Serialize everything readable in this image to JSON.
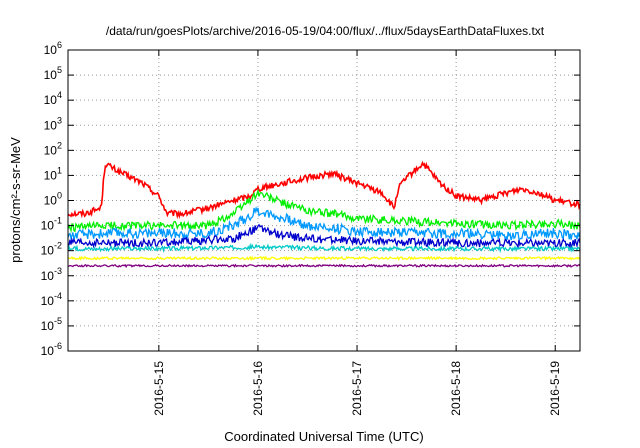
{
  "chart_data": {
    "type": "line",
    "title": "/data/run/goesPlots/archive/2016-05-19/04:00/flux/../flux/5daysEarthDataFluxes.txt",
    "xlabel": "Coordinated Universal Time (UTC)",
    "ylabel": "protons/cm²-s-sr-MeV",
    "x_axis_type": "date",
    "xlim": [
      "2016-05-14T02:00",
      "2016-05-19T06:00"
    ],
    "x_ticks": [
      "2016-5-15",
      "2016-5-16",
      "2016-5-17",
      "2016-5-18",
      "2016-5-19"
    ],
    "y_scale": "log",
    "ylim": [
      1e-06,
      1000000.0
    ],
    "y_ticks": [
      {
        "base": "10",
        "exp": "-6"
      },
      {
        "base": "10",
        "exp": "-5"
      },
      {
        "base": "10",
        "exp": "-4"
      },
      {
        "base": "10",
        "exp": "-3"
      },
      {
        "base": "10",
        "exp": "-2"
      },
      {
        "base": "10",
        "exp": "-1"
      },
      {
        "base": "10",
        "exp": "0"
      },
      {
        "base": "10",
        "exp": "1"
      },
      {
        "base": "10",
        "exp": "2"
      },
      {
        "base": "10",
        "exp": "3"
      },
      {
        "base": "10",
        "exp": "4"
      },
      {
        "base": "10",
        "exp": "5"
      },
      {
        "base": "10",
        "exp": "6"
      }
    ],
    "grid": true,
    "legend": "none",
    "series": [
      {
        "color": "#ff0000",
        "x": [
          "2016-05-14T02:00",
          "2016-05-14T06:00",
          "2016-05-14T10:00",
          "2016-05-14T11:00",
          "2016-05-14T14:00",
          "2016-05-14T20:00",
          "2016-05-15T00:00",
          "2016-05-15T02:00",
          "2016-05-15T06:00",
          "2016-05-15T12:00",
          "2016-05-15T18:00",
          "2016-05-15T22:00",
          "2016-05-16T00:00",
          "2016-05-16T06:00",
          "2016-05-16T12:00",
          "2016-05-16T18:00",
          "2016-05-17T00:00",
          "2016-05-17T06:00",
          "2016-05-17T09:00",
          "2016-05-17T10:00",
          "2016-05-17T12:00",
          "2016-05-17T16:00",
          "2016-05-17T20:00",
          "2016-05-18T00:00",
          "2016-05-18T06:00",
          "2016-05-18T12:00",
          "2016-05-18T16:00",
          "2016-05-18T20:00",
          "2016-05-19T00:00",
          "2016-05-19T06:00"
        ],
        "y": [
          0.3,
          0.3,
          0.5,
          30,
          15,
          5,
          1.5,
          0.3,
          0.3,
          0.5,
          1.0,
          1.5,
          3,
          5,
          8,
          12,
          5,
          2,
          0.5,
          3,
          8,
          30,
          5,
          1.5,
          1.0,
          2,
          3,
          2,
          1.0,
          0.7
        ]
      },
      {
        "color": "#00ee00",
        "x": [
          "2016-05-14T02:00",
          "2016-05-14T12:00",
          "2016-05-15T00:00",
          "2016-05-15T12:00",
          "2016-05-15T18:00",
          "2016-05-16T00:00",
          "2016-05-16T06:00",
          "2016-05-16T12:00",
          "2016-05-16T18:00",
          "2016-05-17T00:00",
          "2016-05-17T12:00",
          "2016-05-18T00:00",
          "2016-05-18T12:00",
          "2016-05-19T00:00",
          "2016-05-19T06:00"
        ],
        "y": [
          0.08,
          0.1,
          0.1,
          0.1,
          0.3,
          2,
          0.8,
          0.4,
          0.3,
          0.2,
          0.15,
          0.12,
          0.1,
          0.12,
          0.1
        ]
      },
      {
        "color": "#0099ff",
        "x": [
          "2016-05-14T02:00",
          "2016-05-14T12:00",
          "2016-05-15T00:00",
          "2016-05-15T12:00",
          "2016-05-15T18:00",
          "2016-05-16T00:00",
          "2016-05-16T06:00",
          "2016-05-16T12:00",
          "2016-05-16T18:00",
          "2016-05-17T00:00",
          "2016-05-17T12:00",
          "2016-05-18T00:00",
          "2016-05-18T12:00",
          "2016-05-19T00:00",
          "2016-05-19T06:00"
        ],
        "y": [
          0.04,
          0.05,
          0.05,
          0.05,
          0.1,
          0.4,
          0.2,
          0.1,
          0.08,
          0.06,
          0.05,
          0.05,
          0.04,
          0.05,
          0.04
        ]
      },
      {
        "color": "#0000cc",
        "x": [
          "2016-05-14T02:00",
          "2016-05-15T00:00",
          "2016-05-15T18:00",
          "2016-05-16T00:00",
          "2016-05-16T06:00",
          "2016-05-16T12:00",
          "2016-05-17T00:00",
          "2016-05-18T00:00",
          "2016-05-19T00:00",
          "2016-05-19T06:00"
        ],
        "y": [
          0.02,
          0.02,
          0.03,
          0.08,
          0.04,
          0.03,
          0.025,
          0.02,
          0.02,
          0.02
        ]
      },
      {
        "color": "#00c8c8",
        "x": [
          "2016-05-14T02:00",
          "2016-05-15T00:00",
          "2016-05-16T00:00",
          "2016-05-17T00:00",
          "2016-05-18T00:00",
          "2016-05-19T00:00",
          "2016-05-19T06:00"
        ],
        "y": [
          0.012,
          0.012,
          0.014,
          0.012,
          0.012,
          0.012,
          0.012
        ]
      },
      {
        "color": "#ffff00",
        "x": [
          "2016-05-14T02:00",
          "2016-05-15T00:00",
          "2016-05-16T00:00",
          "2016-05-17T00:00",
          "2016-05-18T00:00",
          "2016-05-19T00:00",
          "2016-05-19T06:00"
        ],
        "y": [
          0.005,
          0.005,
          0.005,
          0.005,
          0.005,
          0.005,
          0.005
        ]
      },
      {
        "color": "#800080",
        "x": [
          "2016-05-14T02:00",
          "2016-05-15T00:00",
          "2016-05-16T00:00",
          "2016-05-17T00:00",
          "2016-05-18T00:00",
          "2016-05-19T00:00",
          "2016-05-19T06:00"
        ],
        "y": [
          0.0025,
          0.0025,
          0.0025,
          0.0025,
          0.0025,
          0.0025,
          0.0025
        ]
      }
    ]
  }
}
